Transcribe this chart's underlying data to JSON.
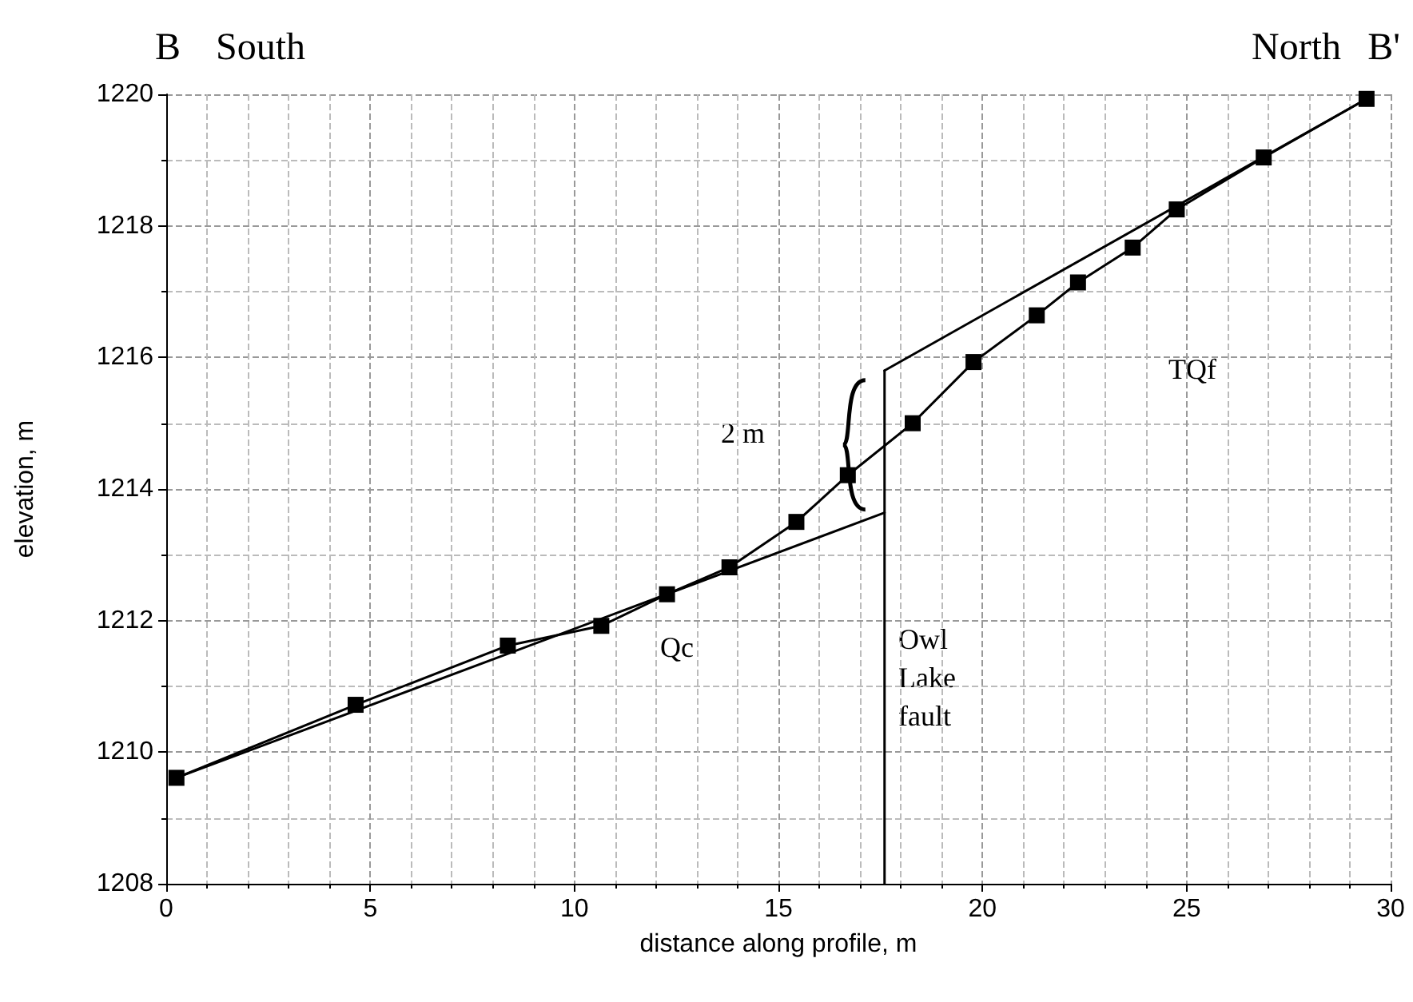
{
  "chart_data": {
    "type": "line",
    "xlabel": "distance along profile, m",
    "ylabel": "elevation, m",
    "xlim": [
      0,
      30
    ],
    "xticks": [
      0,
      5,
      10,
      15,
      20,
      25,
      30
    ],
    "ylim": [
      1208,
      1220
    ],
    "yticks": [
      1208,
      1210,
      1212,
      1214,
      1216,
      1218,
      1220
    ],
    "grid": true,
    "line_style": "solid",
    "series": [
      {
        "color": "#000000",
        "marker": "square",
        "x": [
          0.25,
          4.64,
          8.37,
          10.66,
          12.27,
          13.8,
          15.44,
          16.7,
          18.29,
          19.78,
          21.33,
          22.34,
          23.68,
          24.76,
          26.89,
          29.41
        ],
        "values": [
          1209.61,
          1210.72,
          1211.62,
          1211.92,
          1212.4,
          1212.81,
          1213.5,
          1214.21,
          1215.0,
          1215.93,
          1216.64,
          1217.14,
          1217.67,
          1218.25,
          1219.04,
          1219.93
        ]
      },
      {
        "color": "#000000",
        "marker": "none",
        "x": [
          0.25,
          17.6
        ],
        "values": [
          1209.61,
          1213.64
        ]
      },
      {
        "color": "#000000",
        "marker": "none",
        "x": [
          17.6,
          29.41
        ],
        "values": [
          1215.8,
          1219.93
        ]
      },
      {
        "color": "#000000",
        "marker": "none",
        "x": [
          17.6,
          17.6
        ],
        "values": [
          1208,
          1215.8
        ]
      }
    ],
    "annotations": [
      "B",
      "South",
      "North",
      "B'",
      "2 m",
      "Qc",
      "TQf",
      "Owl\nLake\nfault"
    ]
  }
}
